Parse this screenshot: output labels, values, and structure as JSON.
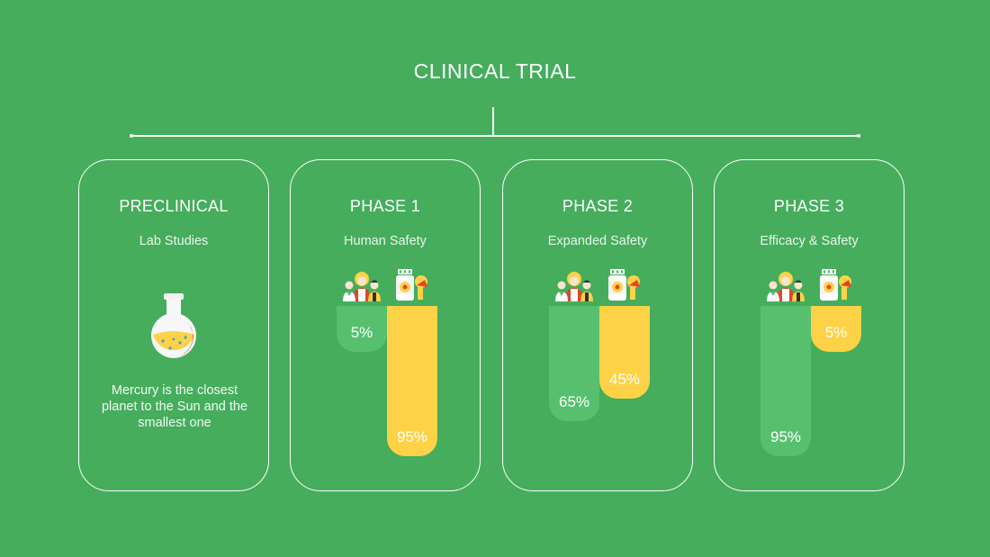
{
  "title": "CLINICAL TRIAL",
  "colors": {
    "background": "#45ad5c",
    "green_bar": "#57c06f",
    "yellow_bar": "#fdd246"
  },
  "preclinical": {
    "title": "PRECLINICAL",
    "subtitle": "Lab Studies",
    "description": "Mercury is the closest planet to the Sun and the smallest one",
    "icon": "flask-icon"
  },
  "icons": {
    "left": "people-group-icon",
    "right": "medicine-bottle-icon"
  },
  "phases": [
    {
      "title": "PHASE 1",
      "subtitle": "Human Safety",
      "green_label": "5%",
      "green_value": 5,
      "yellow_label": "95%",
      "yellow_value": 95
    },
    {
      "title": "PHASE 2",
      "subtitle": "Expanded Safety",
      "green_label": "65%",
      "green_value": 65,
      "yellow_label": "45%",
      "yellow_value": 45
    },
    {
      "title": "PHASE 3",
      "subtitle": "Efficacy & Safety",
      "green_label": "95%",
      "green_value": 95,
      "yellow_label": "5%",
      "yellow_value": 5
    }
  ]
}
